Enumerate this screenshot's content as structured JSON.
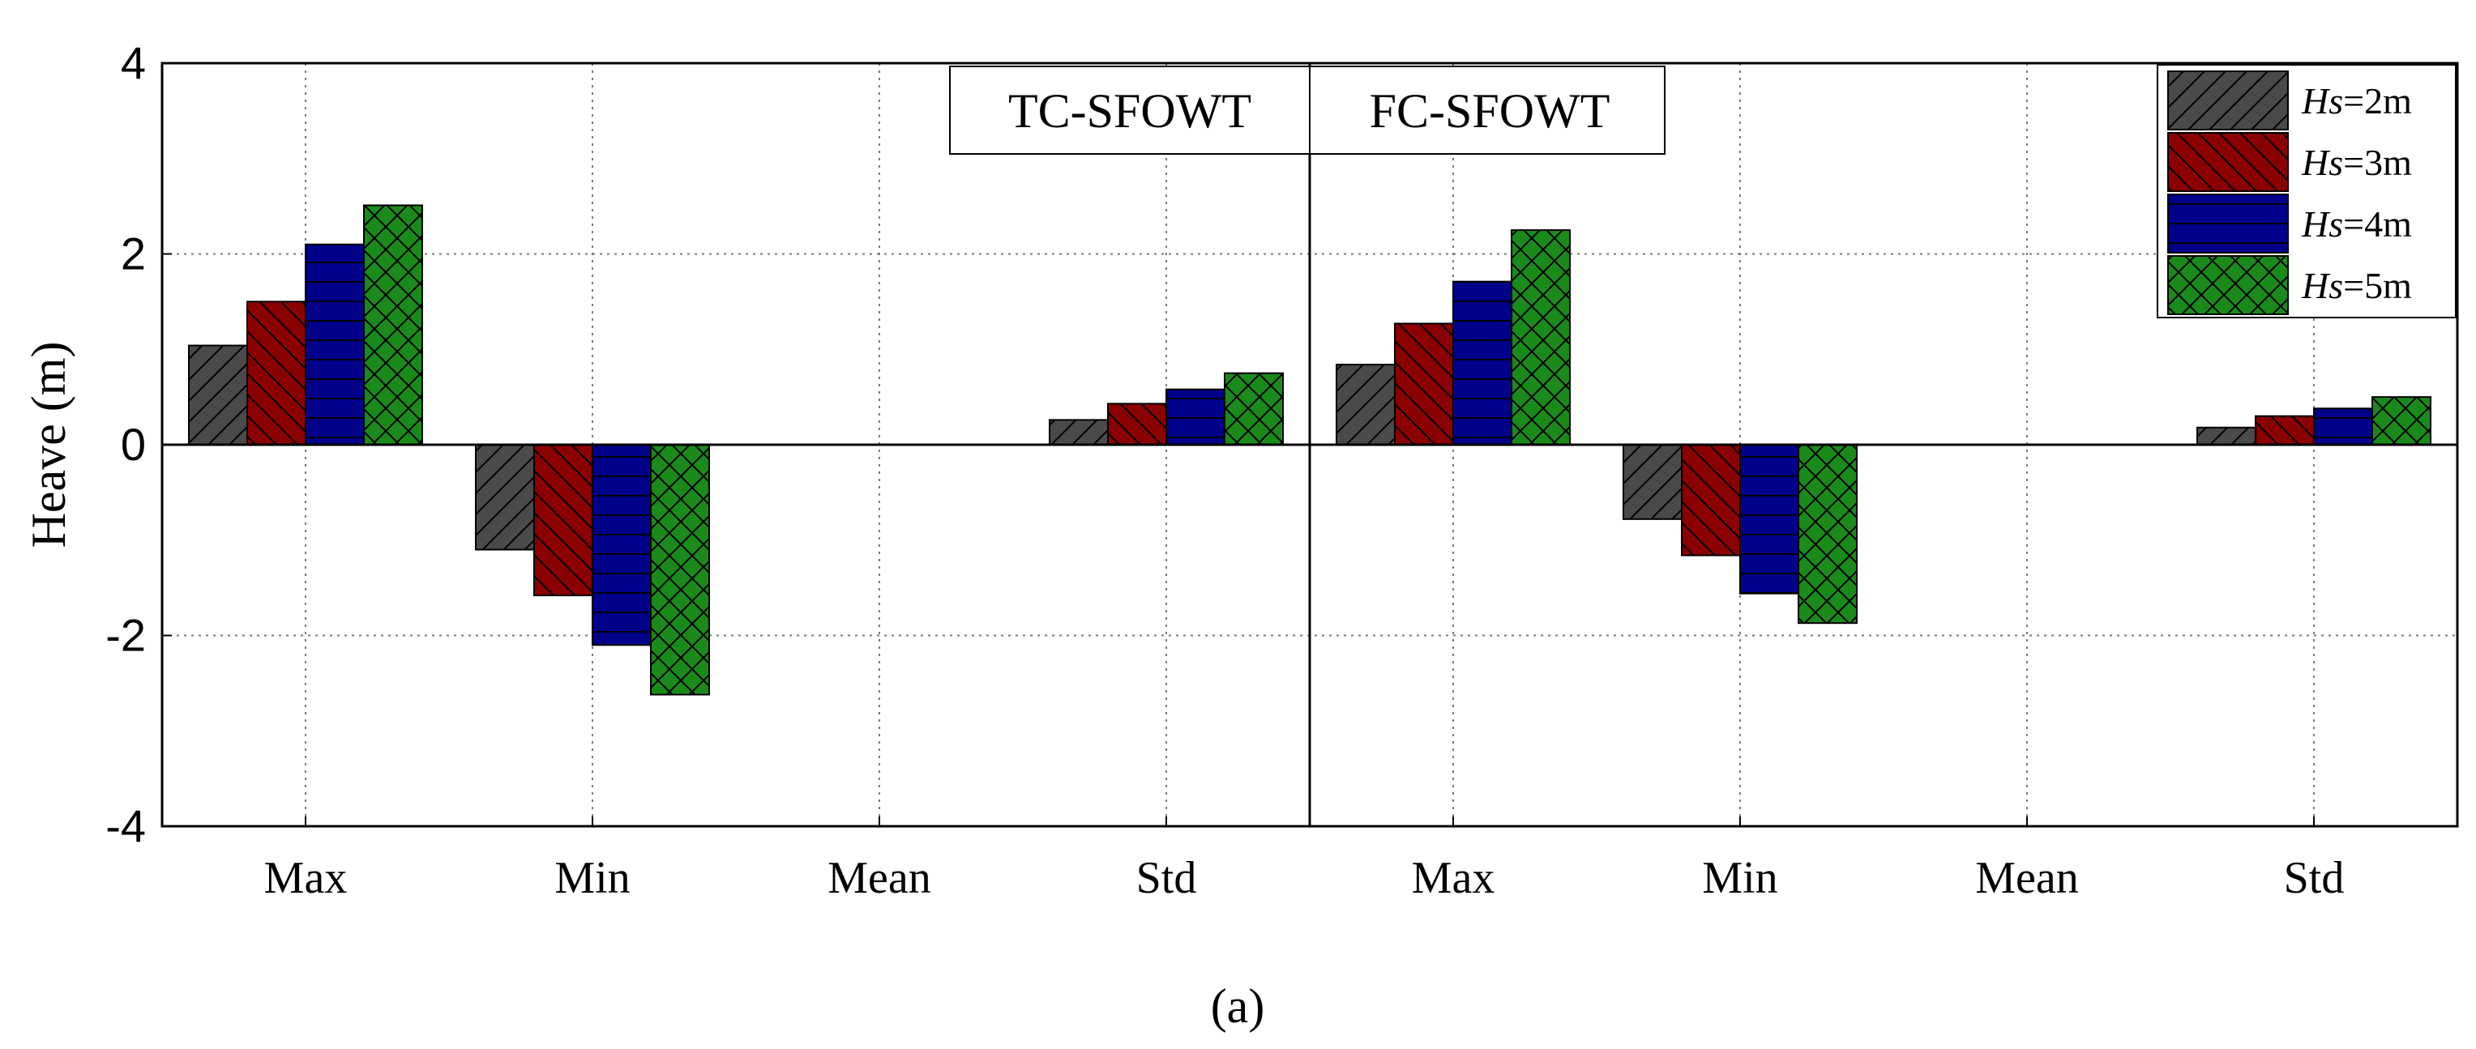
{
  "chart_data": {
    "type": "bar",
    "ylabel": "Heave (m)",
    "ylim": [
      -4,
      4
    ],
    "yticks": [
      -4,
      -2,
      0,
      2,
      4
    ],
    "grid": true,
    "legend_position": "top-right",
    "groups": [
      {
        "name": "TC-SFOWT",
        "categories": [
          "Max",
          "Min",
          "Mean",
          "Std"
        ],
        "series": [
          {
            "name": "Hs=2m",
            "values": [
              1.04,
              -1.1,
              0.0,
              0.26
            ]
          },
          {
            "name": "Hs=3m",
            "values": [
              1.5,
              -1.58,
              0.0,
              0.43
            ]
          },
          {
            "name": "Hs=4m",
            "values": [
              2.1,
              -2.1,
              0.0,
              0.58
            ]
          },
          {
            "name": "Hs=5m",
            "values": [
              2.51,
              -2.62,
              0.0,
              0.75
            ]
          }
        ]
      },
      {
        "name": "FC-SFOWT",
        "categories": [
          "Max",
          "Min",
          "Mean",
          "Std"
        ],
        "series": [
          {
            "name": "Hs=2m",
            "values": [
              0.84,
              -0.78,
              0.0,
              0.18
            ]
          },
          {
            "name": "Hs=3m",
            "values": [
              1.27,
              -1.16,
              0.0,
              0.3
            ]
          },
          {
            "name": "Hs=4m",
            "values": [
              1.71,
              -1.56,
              0.0,
              0.38
            ]
          },
          {
            "name": "Hs=5m",
            "values": [
              2.25,
              -1.87,
              0.0,
              0.5
            ]
          }
        ]
      }
    ],
    "legend": [
      {
        "prefix": "Hs",
        "suffix": "=2m",
        "color": "#4a4a4a",
        "pattern": "diag-forward"
      },
      {
        "prefix": "Hs",
        "suffix": "=3m",
        "color": "#8b0000",
        "pattern": "diag-back"
      },
      {
        "prefix": "Hs",
        "suffix": "=4m",
        "color": "#00008b",
        "pattern": "horizontal"
      },
      {
        "prefix": "Hs",
        "suffix": "=5m",
        "color": "#1a8a1a",
        "pattern": "crosshatch"
      }
    ],
    "caption": "(a)"
  }
}
